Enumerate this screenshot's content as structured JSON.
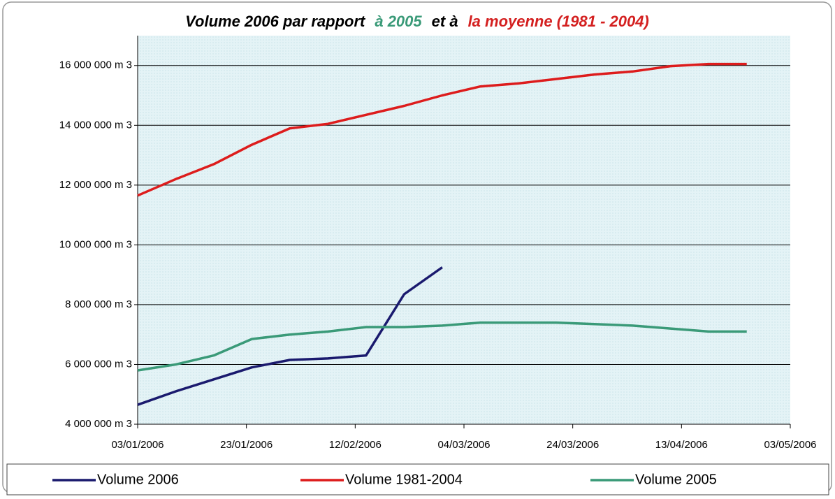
{
  "chart_data": {
    "type": "line",
    "title_parts": [
      {
        "text": "Volume 2006 par rapport",
        "color": "#000000"
      },
      {
        "text": "à 2005",
        "color": "#3a9a78"
      },
      {
        "text": "et à",
        "color": "#000000"
      },
      {
        "text": "la moyenne (1981 - 2004)",
        "color": "#d42020"
      }
    ],
    "x": [
      "03/01/2006",
      "10/01/2006",
      "17/01/2006",
      "24/01/2006",
      "31/01/2006",
      "07/02/2006",
      "14/02/2006",
      "21/02/2006",
      "28/02/2006",
      "07/03/2006",
      "14/03/2006",
      "21/03/2006",
      "28/03/2006",
      "04/04/2006",
      "11/04/2006",
      "18/04/2006",
      "25/04/2006"
    ],
    "series": [
      {
        "name": "Volume 2006",
        "color": "#1a1a6e",
        "values": [
          4650000,
          5100000,
          5500000,
          5900000,
          6150000,
          6200000,
          6300000,
          8350000,
          9250000,
          null,
          null,
          null,
          null,
          null,
          null,
          null,
          null
        ]
      },
      {
        "name": "Volume 1981-2004",
        "color": "#dd1c1c",
        "values": [
          11650000,
          12200000,
          12700000,
          13350000,
          13900000,
          14050000,
          14350000,
          14650000,
          15000000,
          15300000,
          15400000,
          15550000,
          15700000,
          15800000,
          15980000,
          16050000,
          16050000
        ]
      },
      {
        "name": "Volume 2005",
        "color": "#3a9a78",
        "values": [
          5800000,
          6000000,
          6300000,
          6850000,
          7000000,
          7100000,
          7250000,
          7250000,
          7300000,
          7400000,
          7400000,
          7400000,
          7350000,
          7300000,
          7200000,
          7100000,
          7100000
        ]
      }
    ],
    "xlim": [
      "03/01/2006",
      "03/05/2006"
    ],
    "xticks": [
      "03/01/2006",
      "23/01/2006",
      "12/02/2006",
      "04/03/2006",
      "24/03/2006",
      "13/04/2006",
      "03/05/2006"
    ],
    "ylim": [
      4000000,
      17000000
    ],
    "yticks": [
      {
        "value": 4000000,
        "label": "4 000 000 m 3"
      },
      {
        "value": 6000000,
        "label": "6 000 000 m 3"
      },
      {
        "value": 8000000,
        "label": "8 000 000 m 3"
      },
      {
        "value": 10000000,
        "label": "10 000 000 m 3"
      },
      {
        "value": 12000000,
        "label": "12 000 000 m 3"
      },
      {
        "value": 14000000,
        "label": "14 000 000 m 3"
      },
      {
        "value": 16000000,
        "label": "16 000 000 m 3"
      }
    ],
    "grid": true,
    "legend": "bottom"
  }
}
